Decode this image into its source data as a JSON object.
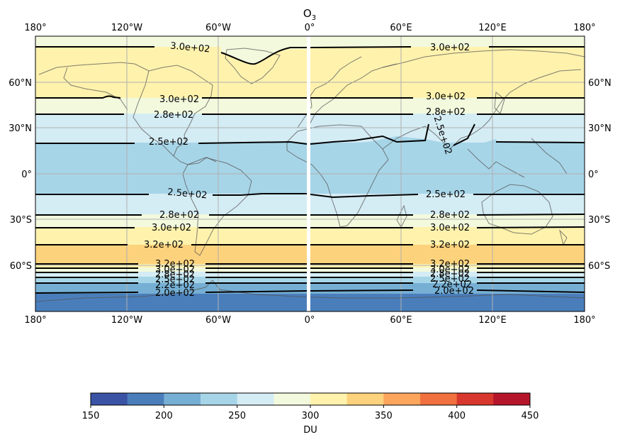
{
  "title": "O",
  "title_sub": "3",
  "lon_ticks": [
    "180°",
    "120°W",
    "60°W",
    "0°",
    "60°E",
    "120°E",
    "180°"
  ],
  "lat_ticks": [
    "60°N",
    "30°N",
    "0°",
    "30°S",
    "60°S"
  ],
  "contour_labels": {
    "top_left": "3.0e+02",
    "top_right": "3.0e+02",
    "n300_left": "3.0e+02",
    "n300_right": "3.0e+02",
    "n280_left": "2.8e+02",
    "n280_right": "2.8e+02",
    "n250_left": "2.5e+02",
    "n250_diag": "2.5e+02",
    "s250_left": "2.5e+02",
    "s250_right": "2.5e+02",
    "s280_left": "2.8e+02",
    "s280_right": "2.8e+02",
    "s300_left": "3.0e+02",
    "s300_right": "3.0e+02",
    "s320_left": "3.2e+02",
    "s320_right": "3.2e+02",
    "p320_left": "3.2e+02",
    "p320_right": "3.2e+02",
    "p300_left": "3.0e+02",
    "p300_right": "3.0e+02",
    "p280_left": "2.8e+02",
    "p280_right": "2.8e+02",
    "p250_left": "2.5e+02",
    "p250_right": "2.5e+02",
    "p220_left": "2.2e+02",
    "p220_right": "2.2e+02",
    "p200_left": "2.0e+02",
    "p200_right": "2.0e+02"
  },
  "colorbar": {
    "label": "DU",
    "ticks": [
      "150",
      "200",
      "250",
      "300",
      "350",
      "400",
      "450"
    ],
    "colors": [
      "#3a53a4",
      "#4a7ebb",
      "#76afd4",
      "#a7d5e8",
      "#d4ecf4",
      "#f2f9dd",
      "#fef2ad",
      "#fdd27c",
      "#fba65c",
      "#f0703f",
      "#d8372d",
      "#b5152b"
    ]
  },
  "map_colors": {
    "band_300_325": "#fef2ad",
    "band_275_300": "#f2f9dd",
    "band_250_275": "#d4ecf4",
    "band_225_250": "#a7d5e8",
    "band_325_350": "#fdd27c",
    "band_200_225": "#76afd4",
    "band_175_200": "#4a7ebb"
  }
}
